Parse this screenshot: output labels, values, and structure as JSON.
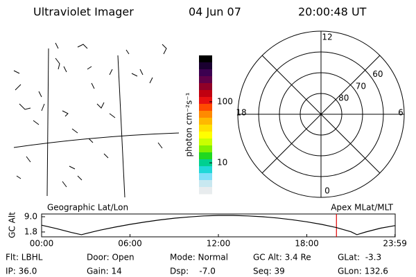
{
  "header": {
    "title": "Ultraviolet Imager",
    "date": "04 Jun 07",
    "time": "20:00:48 UT"
  },
  "chart_data": [
    {
      "type": "colorbar",
      "label": "photon cm⁻²s⁻¹",
      "log": true,
      "ylim": [
        3.1,
        575
      ],
      "yticks": [
        10,
        100
      ],
      "colors": [
        "#000000",
        "#1a0030",
        "#3c0050",
        "#600048",
        "#900028",
        "#c00010",
        "#e81010",
        "#ff4a00",
        "#ff8a00",
        "#ffb800",
        "#ffe000",
        "#ffff00",
        "#c8ff00",
        "#80f000",
        "#20d820",
        "#00d090",
        "#20d8d8",
        "#80e0f8",
        "#c8e8f0",
        "#e8ecee"
      ]
    },
    {
      "type": "polar",
      "rlim": [
        90,
        50
      ],
      "rticks": [
        60,
        70,
        80
      ],
      "angle_ticks": [
        12,
        18,
        6,
        0
      ]
    },
    {
      "type": "line",
      "title_left": "Geographic Lat/Lon",
      "title_right": "Apex MLat/MLT",
      "ylabel": "GC Alt",
      "color": "#000000",
      "x": [
        0,
        1,
        2,
        2.7,
        3.5,
        4,
        5,
        6,
        7,
        8,
        9,
        10,
        11,
        12,
        13,
        14,
        15,
        16,
        17,
        18,
        19,
        20,
        21,
        21.4,
        22,
        23,
        23.98
      ],
      "values": [
        5.0,
        3.4,
        1.6,
        0.5,
        1.9,
        2.7,
        4.1,
        5.4,
        6.5,
        7.5,
        8.3,
        8.9,
        9.4,
        9.6,
        9.6,
        9.4,
        9.0,
        8.4,
        7.6,
        6.6,
        5.4,
        3.9,
        1.9,
        0.5,
        1.8,
        3.6,
        4.8
      ],
      "xlim": [
        0,
        24
      ],
      "ylim": [
        -0.5,
        10.3
      ],
      "xticks": [
        {
          "value": 0,
          "label": "00:00"
        },
        {
          "value": 6,
          "label": "06:00"
        },
        {
          "value": 12,
          "label": "12:00"
        },
        {
          "value": 18,
          "label": "18:00"
        },
        {
          "value": 23.983,
          "label": "23:59"
        }
      ],
      "yticks": [
        {
          "value": 9,
          "label": "9.0"
        },
        1.8
      ],
      "marker_x": 20.013,
      "marker_color": "#e00000"
    }
  ],
  "info": [
    [
      "Flt: LBHL",
      "Door: Open",
      "Mode: Normal",
      "GC Alt: 3.4 Re",
      "GLat:  -3.3"
    ],
    [
      "IP: 36.0",
      "Gain: 14",
      "Dsp:    -7.0",
      "Seq: 39",
      "GLon: 132.6"
    ]
  ]
}
